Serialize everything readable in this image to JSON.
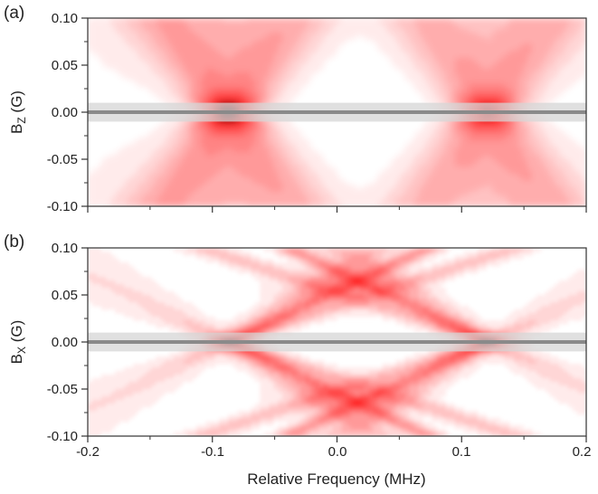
{
  "chart_data": [
    {
      "type": "heatmap",
      "panel_label": "(a)",
      "ylabel_main": "B",
      "ylabel_sub": "Z",
      "ylabel_unit": " (G)",
      "xlabel": "",
      "xlim": [
        -0.2,
        0.2
      ],
      "ylim": [
        -0.1,
        0.1
      ],
      "x_ticks": [
        "-0.2",
        "-0.1",
        "0.0",
        "0.1",
        "0.2"
      ],
      "x_tick_values": [
        -0.2,
        -0.1,
        0.0,
        0.1,
        0.2
      ],
      "y_ticks": [
        "0.10",
        "0.05",
        "0.00",
        "-0.05",
        "-0.10"
      ],
      "y_tick_values": [
        0.1,
        0.05,
        0.0,
        -0.05,
        -0.1
      ],
      "x_tick_labels_shown": false,
      "resonance_centers_mhz": [
        -0.087,
        0.121
      ],
      "field_behavior": "resonances broaden and fan out vertically with increasing |Bz|",
      "colormap": [
        "#ffffff",
        "#ff1a1a",
        "#200000"
      ],
      "zero_field_band": {
        "y": 0.0,
        "halfwidth": 0.01,
        "band_color": "#d6d6d6",
        "line_color": "#8a8a8a"
      }
    },
    {
      "type": "heatmap",
      "panel_label": "(b)",
      "ylabel_main": "B",
      "ylabel_sub": "X",
      "ylabel_unit": " (G)",
      "xlabel": "Relative Frequency (MHz)",
      "xlim": [
        -0.2,
        0.2
      ],
      "ylim": [
        -0.1,
        0.1
      ],
      "x_ticks": [
        "-0.2",
        "-0.1",
        "0.0",
        "0.1",
        "0.2"
      ],
      "x_tick_values": [
        -0.2,
        -0.1,
        0.0,
        0.1,
        0.2
      ],
      "y_ticks": [
        "0.10",
        "0.05",
        "0.00",
        "-0.05",
        "-0.10"
      ],
      "y_tick_values": [
        0.1,
        0.05,
        0.0,
        -0.05,
        -0.1
      ],
      "x_tick_labels_shown": true,
      "resonance_centers_mhz": [
        -0.087,
        0.121
      ],
      "field_behavior": "each resonance splits into lines crossing at Bx = 0, forming an X pattern; branches cross near 0.01 MHz at Bx = ±0.06 G",
      "colormap": [
        "#ffffff",
        "#ff1a1a",
        "#200000"
      ],
      "zero_field_band": {
        "y": 0.0,
        "halfwidth": 0.01,
        "band_color": "#d6d6d6",
        "line_color": "#8a8a8a"
      }
    }
  ]
}
